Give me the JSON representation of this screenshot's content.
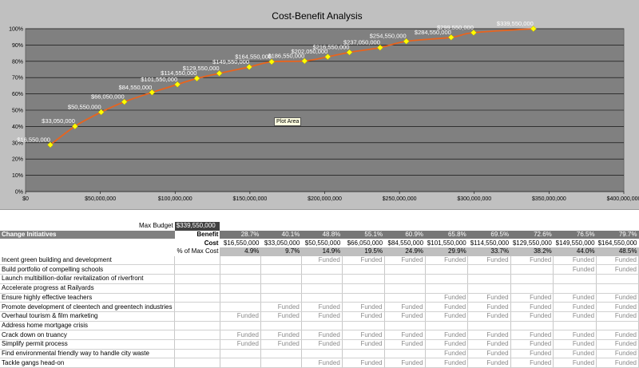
{
  "chart_data": {
    "type": "line",
    "title": "Cost-Benefit Analysis",
    "plot_area_tooltip": "Plot Area",
    "x": [
      16550000,
      33050000,
      50550000,
      66050000,
      84550000,
      101550000,
      114550000,
      129550000,
      149550000,
      164550000,
      186550000,
      202050000,
      216550000,
      237050000,
      254550000,
      284550000,
      299550000,
      339550000
    ],
    "y": [
      28.7,
      40.1,
      48.8,
      55.1,
      60.9,
      65.8,
      69.5,
      72.6,
      76.5,
      79.7,
      80.2,
      82.8,
      85.5,
      88.4,
      92.3,
      94.7,
      97.6,
      100
    ],
    "point_labels": [
      "$16,550,000",
      "$33,050,000",
      "$50,550,000",
      "$66,050,000",
      "$84,550,000",
      "$101,550,000",
      "$114,550,000",
      "$129,550,000",
      "$149,550,000",
      "$164,550,000",
      "$186,550,000",
      "$202,050,000",
      "$216,550,000",
      "$237,050,000",
      "$254,550,000",
      "$284,550,000",
      "$299,550,000",
      "$339,550,000"
    ],
    "xlim": [
      0,
      400000000
    ],
    "ylim": [
      0,
      100
    ],
    "x_ticks": [
      "$0",
      "$50,000,000",
      "$100,000,000",
      "$150,000,000",
      "$200,000,000",
      "$250,000,000",
      "$300,000,000",
      "$350,000,000",
      "$400,000,000"
    ],
    "y_ticks": [
      "0%",
      "10%",
      "20%",
      "30%",
      "40%",
      "50%",
      "60%",
      "70%",
      "80%",
      "90%",
      "100%"
    ],
    "grid": true,
    "line_color": "#e8641e",
    "marker_color": "#ffff00",
    "plot_bg": "#808080"
  },
  "sheet": {
    "max_budget_label": "Max Budget",
    "max_budget_value": "$339,550,000",
    "change_initiatives_header": "Change Initiatives",
    "benefit_label": "Benefit",
    "cost_label": "Cost",
    "pct_label": "% of Max Cost",
    "benefit": [
      "28.7%",
      "40.1%",
      "48.8%",
      "55.1%",
      "60.9%",
      "65.8%",
      "69.5%",
      "72.6%",
      "76.5%",
      "79.7%"
    ],
    "cost": [
      "$16,550,000",
      "$33,050,000",
      "$50,550,000",
      "$66,050,000",
      "$84,550,000",
      "$101,550,000",
      "$114,550,000",
      "$129,550,000",
      "$149,550,000",
      "$164,550,000"
    ],
    "pct_max": [
      "4.9%",
      "9.7%",
      "14.9%",
      "19.5%",
      "24.9%",
      "29.9%",
      "33.7%",
      "38.2%",
      "44.0%",
      "48.5%"
    ],
    "funded_text": "Funded",
    "initiatives": [
      {
        "name": "Incent green building and development",
        "funded": [
          0,
          0,
          1,
          1,
          1,
          1,
          1,
          1,
          1,
          1
        ]
      },
      {
        "name": "Build portfolio of compelling schools",
        "funded": [
          0,
          0,
          0,
          0,
          0,
          0,
          0,
          0,
          1,
          1
        ]
      },
      {
        "name": "Launch multibillion-dollar revitalization of riverfront",
        "funded": [
          0,
          0,
          0,
          0,
          0,
          0,
          0,
          0,
          0,
          0
        ]
      },
      {
        "name": "Accelerate progress at Railyards",
        "funded": [
          0,
          0,
          0,
          0,
          0,
          0,
          0,
          0,
          0,
          0
        ]
      },
      {
        "name": "Ensure highly effective teachers",
        "funded": [
          0,
          0,
          0,
          0,
          0,
          1,
          1,
          1,
          1,
          1
        ]
      },
      {
        "name": "Promote development of cleentech and greentech industries",
        "funded": [
          0,
          1,
          1,
          1,
          1,
          1,
          1,
          1,
          1,
          1
        ]
      },
      {
        "name": "Overhaul tourism & film marketing",
        "funded": [
          1,
          1,
          1,
          1,
          1,
          1,
          1,
          1,
          1,
          1
        ]
      },
      {
        "name": "Address home mortgage crisis",
        "funded": [
          0,
          0,
          0,
          0,
          0,
          0,
          0,
          0,
          0,
          0
        ]
      },
      {
        "name": "Crack down on truancy",
        "funded": [
          1,
          1,
          1,
          1,
          1,
          1,
          1,
          1,
          1,
          1
        ]
      },
      {
        "name": "Simplify permit process",
        "funded": [
          1,
          1,
          1,
          1,
          1,
          1,
          1,
          1,
          1,
          1
        ]
      },
      {
        "name": "Find environmental friendly way to handle city waste",
        "funded": [
          0,
          0,
          0,
          0,
          0,
          1,
          1,
          1,
          1,
          1
        ]
      },
      {
        "name": "Tackle gangs head-on",
        "funded": [
          0,
          0,
          1,
          1,
          1,
          1,
          1,
          1,
          1,
          1
        ]
      }
    ]
  }
}
